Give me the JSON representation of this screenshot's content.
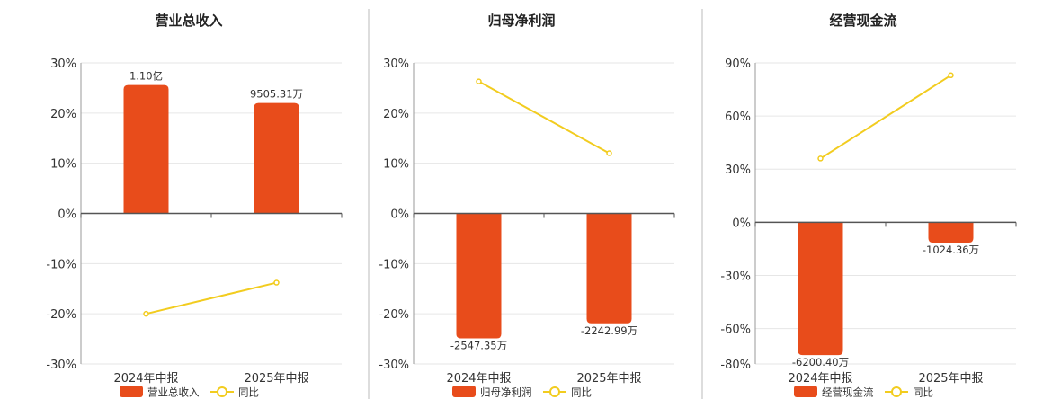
{
  "colors": {
    "bar": "#E84C1B",
    "line": "#F2CC1F",
    "grid": "#e6e6e6",
    "axis": "#555555",
    "divider": "#bbbbbb"
  },
  "chart_data": [
    {
      "type": "bar",
      "title": "营业总收入",
      "categories": [
        "2024年中报",
        "2025年中报"
      ],
      "ylim": [
        -30,
        30
      ],
      "yticks": [
        "30%",
        "20%",
        "10%",
        "0%",
        "-10%",
        "-20%",
        "-30%"
      ],
      "yticks_values": [
        30,
        20,
        10,
        0,
        -10,
        -20,
        -30
      ],
      "series": [
        {
          "name": "营业总收入",
          "kind": "bar",
          "values": [
            25.6,
            22.0
          ],
          "labels": [
            "1.10亿",
            "9505.31万"
          ]
        },
        {
          "name": "同比",
          "kind": "line",
          "values": [
            -20.0,
            -13.8
          ]
        }
      ],
      "grid": true,
      "legend": "bottom"
    },
    {
      "type": "bar",
      "title": "归母净利润",
      "categories": [
        "2024年中报",
        "2025年中报"
      ],
      "ylim": [
        -30,
        30
      ],
      "yticks": [
        "30%",
        "20%",
        "10%",
        "0%",
        "-10%",
        "-20%",
        "-30%"
      ],
      "yticks_values": [
        30,
        20,
        10,
        0,
        -10,
        -20,
        -30
      ],
      "series": [
        {
          "name": "归母净利润",
          "kind": "bar",
          "values": [
            -24.9,
            -21.9
          ],
          "labels": [
            "-2547.35万",
            "-2242.99万"
          ]
        },
        {
          "name": "同比",
          "kind": "line",
          "values": [
            26.3,
            12.0
          ]
        }
      ],
      "grid": true,
      "legend": "bottom"
    },
    {
      "type": "bar",
      "title": "经营现金流",
      "categories": [
        "2024年中报",
        "2025年中报"
      ],
      "ylim": [
        -80,
        90
      ],
      "yticks": [
        "90%",
        "60%",
        "30%",
        "0%",
        "-30%",
        "-60%",
        "-80%"
      ],
      "yticks_values": [
        90,
        60,
        30,
        0,
        -30,
        -60,
        -80
      ],
      "series": [
        {
          "name": "经营现金流",
          "kind": "bar",
          "values": [
            -75.0,
            -11.5
          ],
          "labels": [
            "-6200.40万",
            "-1024.36万"
          ]
        },
        {
          "name": "同比",
          "kind": "line",
          "values": [
            36.0,
            83.0
          ]
        }
      ],
      "grid": true,
      "legend": "bottom"
    }
  ]
}
